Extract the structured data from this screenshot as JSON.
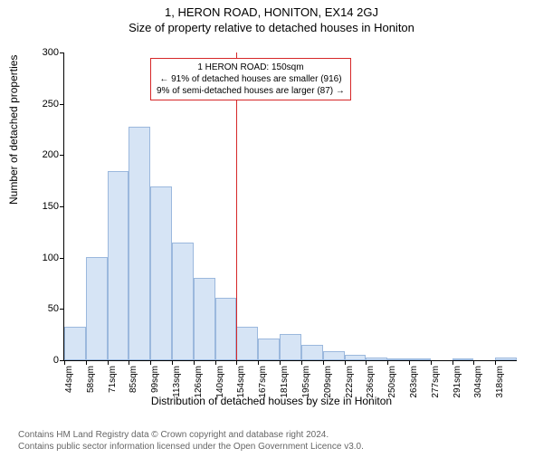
{
  "title_main": "1, HERON ROAD, HONITON, EX14 2GJ",
  "title_sub": "Size of property relative to detached houses in Honiton",
  "y_label": "Number of detached properties",
  "x_label": "Distribution of detached houses by size in Honiton",
  "chart": {
    "type": "histogram",
    "ylim": [
      0,
      300
    ],
    "ytick_step": 50,
    "bar_fill": "#d6e4f5",
    "bar_border": "#9bb8dd",
    "ref_line": {
      "value_index": 8,
      "color": "#d62728"
    },
    "annotation_border": "#d62728",
    "annotation": {
      "line1": "1 HERON ROAD: 150sqm",
      "line2": "← 91% of detached houses are smaller (916)",
      "line3": "9% of semi-detached houses are larger (87) →"
    },
    "x_labels": [
      "44sqm",
      "58sqm",
      "71sqm",
      "85sqm",
      "99sqm",
      "113sqm",
      "126sqm",
      "140sqm",
      "154sqm",
      "167sqm",
      "181sqm",
      "195sqm",
      "209sqm",
      "222sqm",
      "236sqm",
      "250sqm",
      "263sqm",
      "277sqm",
      "291sqm",
      "304sqm",
      "318sqm"
    ],
    "values": [
      33,
      101,
      184,
      228,
      169,
      115,
      80,
      61,
      33,
      21,
      26,
      15,
      9,
      5,
      3,
      2,
      2,
      0,
      2,
      0,
      3
    ]
  },
  "footer": {
    "line1": "Contains HM Land Registry data © Crown copyright and database right 2024.",
    "line2": "Contains public sector information licensed under the Open Government Licence v3.0."
  }
}
